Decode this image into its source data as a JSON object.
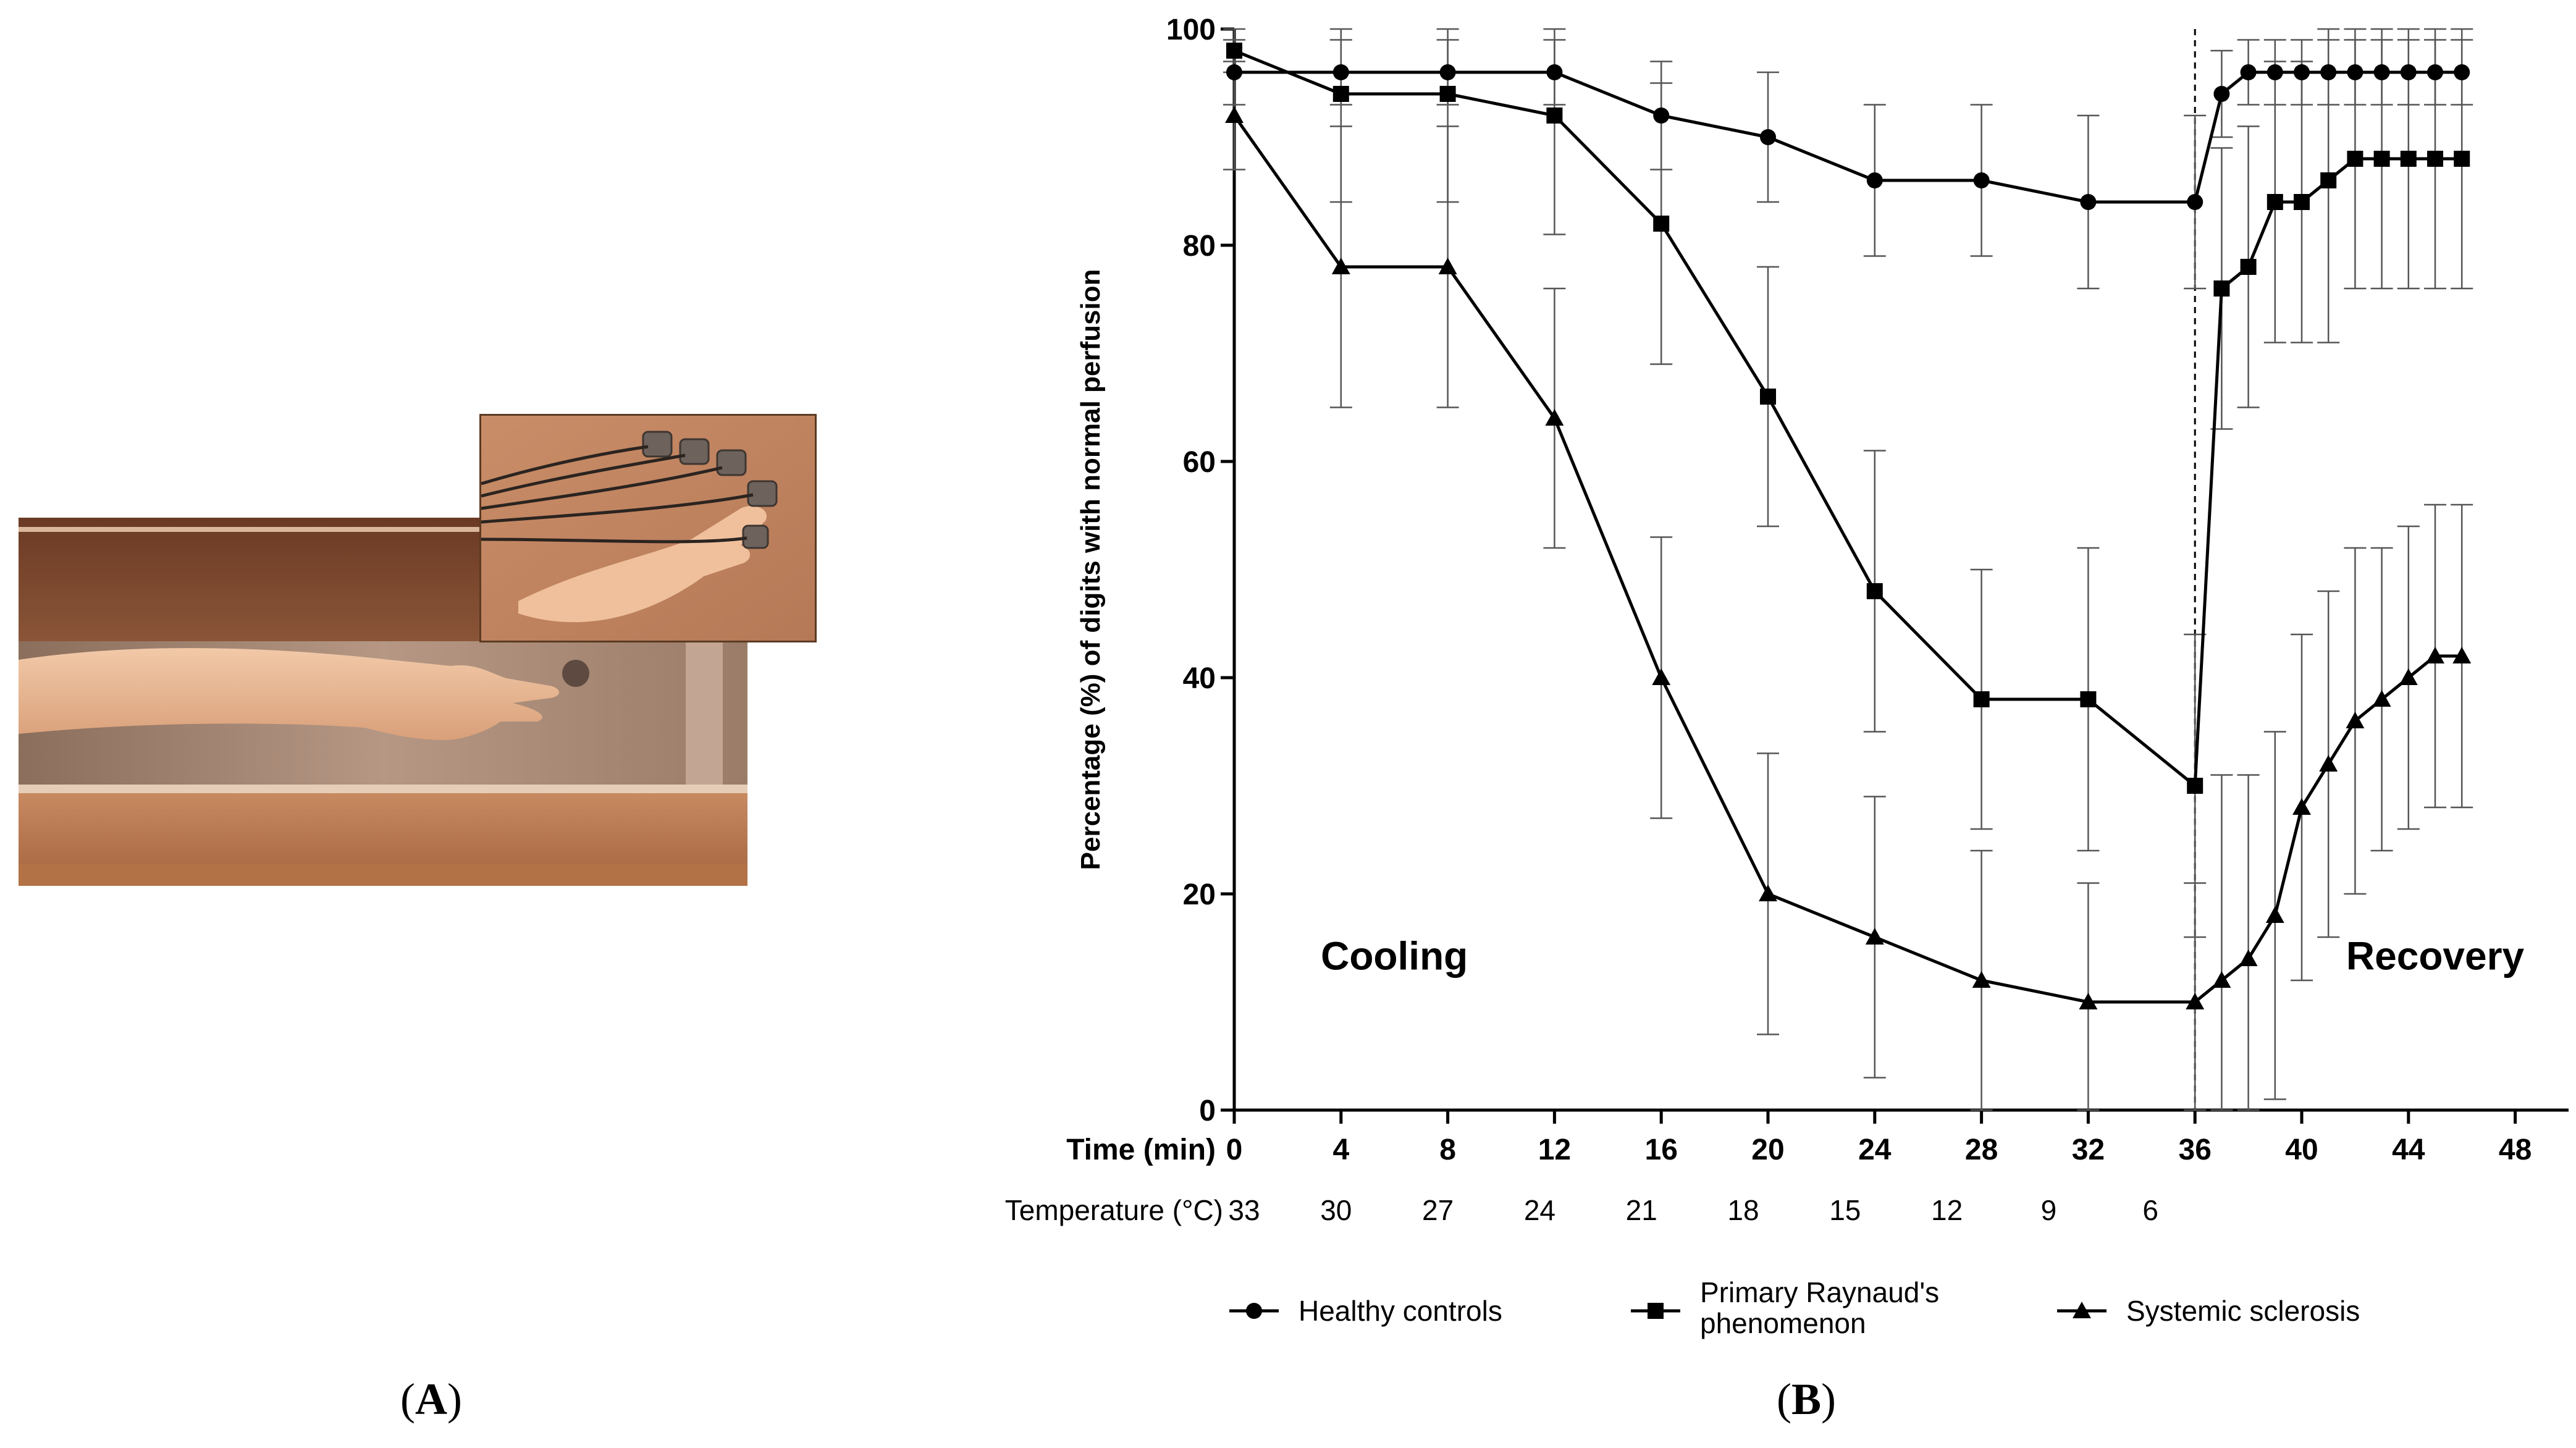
{
  "panels": {
    "left_label": "A",
    "right_label": "B"
  },
  "photo": {
    "description_icon": "arm-in-cooling-box-photo"
  },
  "chart_data": {
    "type": "line",
    "ylabel": "Percentage (%) of digits with normal perfusion",
    "xlabel": "Time (min)",
    "xlim": [
      0,
      50
    ],
    "ylim": [
      0,
      100
    ],
    "x_ticks": [
      0,
      4,
      8,
      12,
      16,
      20,
      24,
      28,
      32,
      36,
      40,
      44,
      48
    ],
    "y_ticks": [
      0,
      20,
      40,
      60,
      80,
      100
    ],
    "temperature_label": "Temperature (°C)",
    "temperature_ticks": [
      {
        "x": 0,
        "label": "33"
      },
      {
        "x": 4,
        "label": "30"
      },
      {
        "x": 8,
        "label": "27"
      },
      {
        "x": 12,
        "label": "24"
      },
      {
        "x": 16,
        "label": "21"
      },
      {
        "x": 20,
        "label": "18"
      },
      {
        "x": 24,
        "label": "15"
      },
      {
        "x": 28,
        "label": "12"
      },
      {
        "x": 32,
        "label": "9"
      },
      {
        "x": 36,
        "label": "6"
      }
    ],
    "divider_x": 36,
    "annotations": [
      {
        "text": "Cooling",
        "x": 6,
        "y": 13
      },
      {
        "text": "Recovery",
        "x": 45,
        "y": 13
      }
    ],
    "series": [
      {
        "name": "Healthy controls",
        "marker": "circle",
        "x": [
          0,
          4,
          8,
          12,
          16,
          20,
          24,
          28,
          32,
          36,
          37,
          38,
          39,
          40,
          41,
          42,
          43,
          44,
          45,
          46
        ],
        "y": [
          96,
          96,
          96,
          96,
          92,
          90,
          86,
          86,
          84,
          84,
          94,
          96,
          96,
          96,
          96,
          96,
          96,
          96,
          96,
          96
        ],
        "err": [
          3,
          3,
          3,
          3,
          5,
          6,
          7,
          7,
          8,
          8,
          4,
          3,
          3,
          3,
          3,
          3,
          3,
          3,
          3,
          3
        ]
      },
      {
        "name": "Primary Raynaud's phenomenon",
        "marker": "square",
        "x": [
          0,
          4,
          8,
          12,
          16,
          20,
          24,
          28,
          32,
          36,
          37,
          38,
          39,
          40,
          41,
          42,
          43,
          44,
          45,
          46
        ],
        "y": [
          98,
          94,
          94,
          92,
          82,
          66,
          48,
          38,
          38,
          30,
          76,
          78,
          84,
          84,
          86,
          88,
          88,
          88,
          88,
          88
        ],
        "err": [
          2,
          10,
          10,
          11,
          13,
          12,
          13,
          12,
          14,
          14,
          13,
          13,
          13,
          13,
          15,
          12,
          12,
          12,
          12,
          12
        ]
      },
      {
        "name": "Systemic sclerosis",
        "marker": "triangle",
        "x": [
          0,
          4,
          8,
          12,
          16,
          20,
          24,
          28,
          32,
          36,
          37,
          38,
          39,
          40,
          41,
          42,
          43,
          44,
          45,
          46
        ],
        "y": [
          92,
          78,
          78,
          64,
          40,
          20,
          16,
          12,
          10,
          10,
          12,
          14,
          18,
          28,
          32,
          36,
          38,
          40,
          42,
          42
        ],
        "err": [
          5,
          13,
          13,
          12,
          13,
          13,
          13,
          12,
          11,
          11,
          19,
          17,
          17,
          16,
          16,
          16,
          14,
          14,
          14,
          14
        ]
      }
    ],
    "legend": {
      "position": "bottom",
      "entries": [
        {
          "label_lines": [
            "Healthy controls"
          ],
          "marker": "circle"
        },
        {
          "label_lines": [
            "Primary Raynaud's",
            "phenomenon"
          ],
          "marker": "square"
        },
        {
          "label_lines": [
            "Systemic sclerosis"
          ],
          "marker": "triangle"
        }
      ]
    }
  }
}
